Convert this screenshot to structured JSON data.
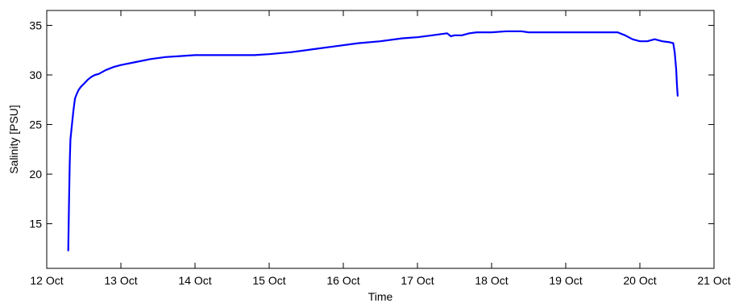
{
  "chart_data": {
    "type": "line",
    "title": "",
    "xlabel": "Time",
    "ylabel": "Salinity [PSU]",
    "xlim": [
      0,
      9
    ],
    "ylim": [
      10.5,
      36.5
    ],
    "grid": false,
    "x_ticks": [
      {
        "value": 0,
        "label": "12 Oct"
      },
      {
        "value": 1,
        "label": "13 Oct"
      },
      {
        "value": 2,
        "label": "14 Oct"
      },
      {
        "value": 3,
        "label": "15 Oct"
      },
      {
        "value": 4,
        "label": "16 Oct"
      },
      {
        "value": 5,
        "label": "17 Oct"
      },
      {
        "value": 6,
        "label": "18 Oct"
      },
      {
        "value": 7,
        "label": "19 Oct"
      },
      {
        "value": 8,
        "label": "20 Oct"
      },
      {
        "value": 9,
        "label": "21 Oct"
      }
    ],
    "y_ticks": [
      {
        "value": 15,
        "label": "15"
      },
      {
        "value": 20,
        "label": "20"
      },
      {
        "value": 25,
        "label": "25"
      },
      {
        "value": 30,
        "label": "30"
      },
      {
        "value": 35,
        "label": "35"
      }
    ],
    "series": [
      {
        "color": "#0000ff",
        "x": [
          0.29,
          0.3,
          0.31,
          0.32,
          0.34,
          0.36,
          0.38,
          0.4,
          0.43,
          0.46,
          0.5,
          0.55,
          0.6,
          0.65,
          0.7,
          0.8,
          0.9,
          1.0,
          1.2,
          1.4,
          1.6,
          1.8,
          2.0,
          2.2,
          2.4,
          2.6,
          2.8,
          3.0,
          3.3,
          3.6,
          3.9,
          4.2,
          4.5,
          4.8,
          5.0,
          5.2,
          5.4,
          5.45,
          5.5,
          5.6,
          5.7,
          5.8,
          6.0,
          6.2,
          6.4,
          6.5,
          6.6,
          6.8,
          7.0,
          7.2,
          7.4,
          7.6,
          7.7,
          7.8,
          7.9,
          8.0,
          8.1,
          8.2,
          8.3,
          8.4,
          8.45,
          8.47,
          8.49,
          8.5,
          8.51
        ],
        "y": [
          12.3,
          17.0,
          21.0,
          23.5,
          25.0,
          26.4,
          27.6,
          28.0,
          28.5,
          28.8,
          29.1,
          29.5,
          29.8,
          30.0,
          30.1,
          30.5,
          30.8,
          31.0,
          31.3,
          31.6,
          31.8,
          31.9,
          32.0,
          32.0,
          32.0,
          32.0,
          32.0,
          32.1,
          32.3,
          32.6,
          32.9,
          33.2,
          33.4,
          33.7,
          33.8,
          34.0,
          34.2,
          33.9,
          34.0,
          34.0,
          34.2,
          34.3,
          34.3,
          34.4,
          34.4,
          34.3,
          34.3,
          34.3,
          34.3,
          34.3,
          34.3,
          34.3,
          34.3,
          34.0,
          33.6,
          33.4,
          33.4,
          33.6,
          33.4,
          33.3,
          33.2,
          32.3,
          30.5,
          29.0,
          27.9
        ]
      }
    ]
  }
}
